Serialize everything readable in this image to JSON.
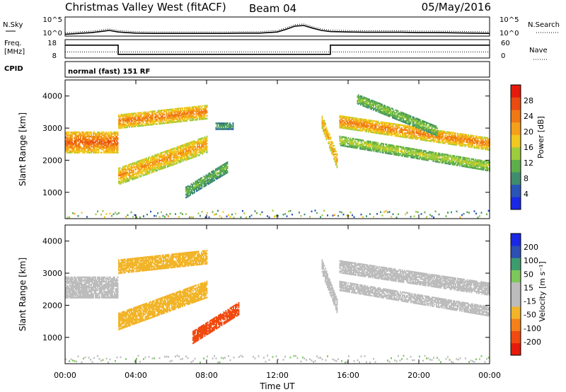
{
  "header": {
    "station": "Christmas Valley West (fitACF)",
    "beam": "Beam 04",
    "date": "05/May/2016"
  },
  "sky_panel": {
    "left_label": "N.Sky",
    "right_label": "N.Search",
    "left_ticks": [
      "10^5",
      "10^0"
    ],
    "right_ticks": [
      "10^5",
      "10^0"
    ]
  },
  "freq_panel": {
    "left_label_1": "Freq.",
    "left_label_2": "[MHz]",
    "left_ticks": [
      "18",
      "8"
    ],
    "right_label": "Nave",
    "right_ticks": [
      "60",
      "0"
    ]
  },
  "cpid_panel": {
    "label": "CPID",
    "program": "normal (fast) 151 RF"
  },
  "x_axis": {
    "title": "Time UT",
    "ticks": [
      "00:00",
      "04:00",
      "08:00",
      "12:00",
      "16:00",
      "20:00",
      "00:00"
    ]
  },
  "colors": {
    "power": [
      "#1a28e6",
      "#2a55b8",
      "#3f8d6e",
      "#5fae4c",
      "#9dcc3c",
      "#f0c81e",
      "#f5a01a",
      "#f07814",
      "#eb4a10",
      "#e61a0a"
    ],
    "velocity": [
      "#e61a0a",
      "#f04a10",
      "#f58018",
      "#f2b428",
      "#bcbcbc",
      "#bcbcbc",
      "#7cc85a",
      "#3c9c6e",
      "#2c50b4",
      "#1a28e6"
    ],
    "ground_scatter": "#bcbcbc"
  },
  "chart_data": [
    {
      "type": "line",
      "panel": "sky-noise",
      "y_scale": "log",
      "ylim": [
        1,
        100000
      ],
      "x_unit": "hours UT",
      "series": [
        {
          "x": [
            0,
            0.5,
            1,
            1.5,
            2,
            2.5,
            3,
            3.5,
            4,
            5,
            6,
            7,
            8,
            9,
            10,
            11,
            12,
            12.5,
            13,
            13.5,
            14,
            14.5,
            15,
            16,
            17,
            18,
            19,
            20,
            21,
            22,
            23,
            24
          ],
          "values": [
            3,
            4,
            6,
            8,
            15,
            30,
            12,
            8,
            6,
            5,
            5,
            5,
            5,
            5,
            6,
            6,
            12,
            60,
            400,
            600,
            120,
            30,
            15,
            12,
            10,
            10,
            10,
            8,
            8,
            7,
            6,
            5
          ]
        }
      ]
    },
    {
      "type": "line",
      "panel": "frequency",
      "ylim": [
        8,
        18
      ],
      "y_unit": "MHz",
      "x_unit": "hours UT",
      "series": [
        {
          "x": [
            0,
            3,
            3,
            15,
            15,
            24
          ],
          "values": [
            15,
            15,
            10,
            10,
            15,
            15
          ]
        }
      ],
      "nave_level": 20
    },
    {
      "type": "heatmap",
      "panel": "power",
      "ylabel": "Slant Range [km]",
      "xlabel": "Time UT",
      "xlim": [
        0,
        24
      ],
      "ylim": [
        180,
        4500
      ],
      "y_ticks": [
        1000,
        2000,
        3000,
        4000
      ],
      "colorbar": {
        "label": "Power [dB]",
        "ticks": [
          4,
          8,
          12,
          16,
          20,
          24,
          28
        ],
        "range": [
          0,
          32
        ]
      },
      "echo_regions": [
        {
          "t": [
            0,
            3
          ],
          "r_center": [
            2550,
            2550
          ],
          "half_width": 330,
          "value": 26
        },
        {
          "t": [
            3,
            8
          ],
          "r_center": [
            3200,
            3500
          ],
          "half_width": 220,
          "value": 24
        },
        {
          "t": [
            3,
            8
          ],
          "r_center": [
            1500,
            2500
          ],
          "half_width": 270,
          "value": 22
        },
        {
          "t": [
            6.8,
            9.2
          ],
          "r_center": [
            1000,
            1800
          ],
          "half_width": 180,
          "value": 12
        },
        {
          "t": [
            8.5,
            9.5
          ],
          "r_center": [
            3050,
            3050
          ],
          "half_width": 100,
          "value": 10
        },
        {
          "t": [
            14.5,
            15.4
          ],
          "r_center": [
            3200,
            1900
          ],
          "half_width": 220,
          "value": 22
        },
        {
          "t": [
            15.5,
            24
          ],
          "r_center": [
            3200,
            2500
          ],
          "half_width": 200,
          "value": 24
        },
        {
          "t": [
            15.5,
            24
          ],
          "r_center": [
            2600,
            1800
          ],
          "half_width": 150,
          "value": 16
        },
        {
          "t": [
            16.5,
            21
          ],
          "r_center": [
            3900,
            2900
          ],
          "half_width": 150,
          "value": 14
        }
      ]
    },
    {
      "type": "heatmap",
      "panel": "velocity",
      "ylabel": "Slant Range [km]",
      "xlabel": "Time UT",
      "xlim": [
        0,
        24
      ],
      "ylim": [
        180,
        4500
      ],
      "y_ticks": [
        1000,
        2000,
        3000,
        4000
      ],
      "colorbar": {
        "label": "Velocity [m s⁻¹]",
        "ticks": [
          200,
          100,
          50,
          15,
          -15,
          -50,
          -100,
          -200
        ]
      },
      "echo_regions": [
        {
          "t": [
            0,
            3
          ],
          "r_center": [
            2550,
            2550
          ],
          "half_width": 330,
          "value": 0
        },
        {
          "t": [
            3,
            8
          ],
          "r_center": [
            3200,
            3500
          ],
          "half_width": 220,
          "value": -30
        },
        {
          "t": [
            3,
            8
          ],
          "r_center": [
            1500,
            2500
          ],
          "half_width": 270,
          "value": -40
        },
        {
          "t": [
            7.2,
            9.8
          ],
          "r_center": [
            1000,
            1900
          ],
          "half_width": 200,
          "value": -180
        },
        {
          "t": [
            14.5,
            15.4
          ],
          "r_center": [
            3200,
            1900
          ],
          "half_width": 220,
          "value": 0
        },
        {
          "t": [
            15.5,
            24
          ],
          "r_center": [
            3200,
            2500
          ],
          "half_width": 200,
          "value": 0
        },
        {
          "t": [
            15.5,
            24
          ],
          "r_center": [
            2600,
            1800
          ],
          "half_width": 150,
          "value": 0
        }
      ]
    }
  ]
}
